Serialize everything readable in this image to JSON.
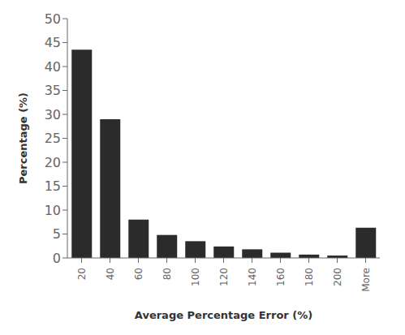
{
  "chart_data": {
    "type": "bar",
    "categories": [
      "20",
      "40",
      "60",
      "80",
      "100",
      "120",
      "140",
      "160",
      "180",
      "200",
      "More"
    ],
    "values": [
      43.5,
      29.0,
      8.0,
      4.8,
      3.5,
      2.4,
      1.8,
      1.1,
      0.7,
      0.5,
      6.3
    ],
    "color": "#2b2b2b",
    "xlabel": "Average Percentage Error (%)",
    "ylabel": "Percentage (%)",
    "ylim": [
      0,
      50
    ],
    "yticks": [
      0,
      5,
      10,
      15,
      20,
      25,
      30,
      35,
      40,
      45,
      50
    ],
    "grid": false
  }
}
